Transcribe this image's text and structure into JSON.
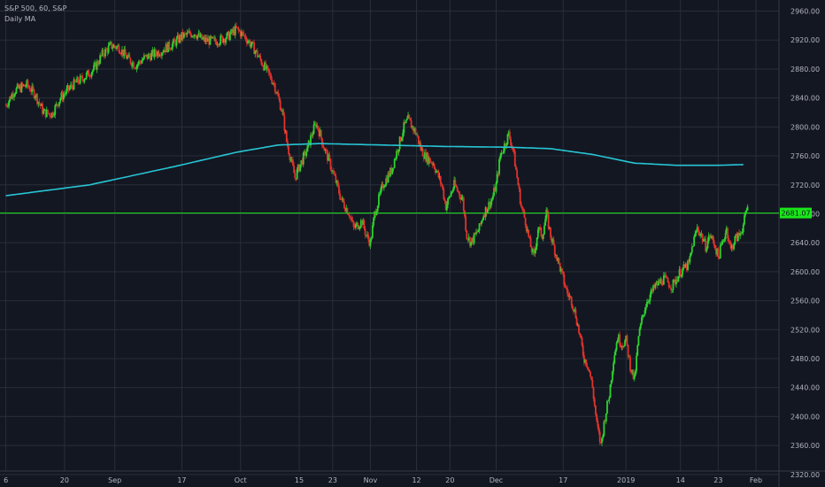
{
  "legend": {
    "symbol_line": "S&P 500, 60, S&P",
    "indicator_line": "Daily MA"
  },
  "colors": {
    "background": "#131722",
    "grid": "#2a2e39",
    "up_candle": "#2fd32f",
    "down_candle": "#e0332b",
    "ma_line": "#27c5d4",
    "price_line": "#19e619",
    "axis_text": "#b2b5be"
  },
  "chart_data": {
    "type": "candlestick",
    "title": "S&P 500, 60, S&P",
    "ylim": [
      2310,
      2990
    ],
    "y_ticks": [
      2320,
      2360,
      2400,
      2440,
      2480,
      2520,
      2560,
      2600,
      2640,
      2680,
      2720,
      2760,
      2800,
      2840,
      2880,
      2920,
      2960
    ],
    "y_tick_labels": [
      "2320.00",
      "2360.00",
      "2400.00",
      "2440.00",
      "2480.00",
      "2520.00",
      "2560.00",
      "2600.00",
      "2640.00",
      "2680.00",
      "2720.00",
      "2760.00",
      "2800.00",
      "2840.00",
      "2880.00",
      "2920.00",
      "2960.00"
    ],
    "x_ticks": [
      {
        "label": "6",
        "day": 0
      },
      {
        "label": "20",
        "day": 14
      },
      {
        "label": "Sep",
        "day": 26
      },
      {
        "label": "17",
        "day": 42
      },
      {
        "label": "Oct",
        "day": 56
      },
      {
        "label": "15",
        "day": 70
      },
      {
        "label": "23",
        "day": 78
      },
      {
        "label": "Nov",
        "day": 87
      },
      {
        "label": "12",
        "day": 98
      },
      {
        "label": "20",
        "day": 106
      },
      {
        "label": "Dec",
        "day": 117
      },
      {
        "label": "17",
        "day": 133
      },
      {
        "label": "2019",
        "day": 148
      },
      {
        "label": "14",
        "day": 161
      },
      {
        "label": "23",
        "day": 170
      },
      {
        "label": "Feb",
        "day": 179
      }
    ],
    "price_keypoints": [
      [
        0,
        2830
      ],
      [
        2,
        2850
      ],
      [
        5,
        2858
      ],
      [
        7,
        2845
      ],
      [
        9,
        2820
      ],
      [
        11,
        2818
      ],
      [
        13,
        2840
      ],
      [
        16,
        2858
      ],
      [
        19,
        2870
      ],
      [
        21,
        2880
      ],
      [
        23,
        2900
      ],
      [
        25,
        2912
      ],
      [
        27,
        2910
      ],
      [
        29,
        2895
      ],
      [
        31,
        2885
      ],
      [
        33,
        2895
      ],
      [
        35,
        2900
      ],
      [
        37,
        2905
      ],
      [
        40,
        2915
      ],
      [
        42,
        2925
      ],
      [
        45,
        2930
      ],
      [
        47,
        2920
      ],
      [
        50,
        2918
      ],
      [
        53,
        2925
      ],
      [
        55,
        2935
      ],
      [
        57,
        2925
      ],
      [
        59,
        2910
      ],
      [
        62,
        2880
      ],
      [
        64,
        2860
      ],
      [
        66,
        2820
      ],
      [
        67,
        2780
      ],
      [
        68,
        2755
      ],
      [
        69,
        2730
      ],
      [
        70,
        2745
      ],
      [
        72,
        2770
      ],
      [
        73,
        2790
      ],
      [
        74,
        2805
      ],
      [
        75,
        2790
      ],
      [
        76,
        2770
      ],
      [
        77,
        2755
      ],
      [
        79,
        2720
      ],
      [
        80,
        2700
      ],
      [
        82,
        2680
      ],
      [
        83,
        2660
      ],
      [
        85,
        2670
      ],
      [
        86,
        2650
      ],
      [
        87,
        2640
      ],
      [
        88,
        2680
      ],
      [
        90,
        2720
      ],
      [
        92,
        2740
      ],
      [
        93,
        2760
      ],
      [
        95,
        2800
      ],
      [
        96,
        2810
      ],
      [
        98,
        2790
      ],
      [
        99,
        2770
      ],
      [
        100,
        2760
      ],
      [
        102,
        2750
      ],
      [
        104,
        2720
      ],
      [
        105,
        2690
      ],
      [
        107,
        2720
      ],
      [
        109,
        2700
      ],
      [
        110,
        2650
      ],
      [
        111,
        2640
      ],
      [
        113,
        2660
      ],
      [
        114,
        2680
      ],
      [
        116,
        2700
      ],
      [
        117,
        2720
      ],
      [
        118,
        2760
      ],
      [
        120,
        2790
      ],
      [
        121,
        2770
      ],
      [
        122,
        2730
      ],
      [
        123,
        2690
      ],
      [
        124,
        2670
      ],
      [
        125,
        2640
      ],
      [
        126,
        2620
      ],
      [
        127,
        2660
      ],
      [
        128,
        2650
      ],
      [
        129,
        2680
      ],
      [
        130,
        2650
      ],
      [
        131,
        2630
      ],
      [
        132,
        2610
      ],
      [
        133,
        2590
      ],
      [
        134,
        2570
      ],
      [
        135,
        2560
      ],
      [
        136,
        2540
      ],
      [
        137,
        2510
      ],
      [
        138,
        2480
      ],
      [
        139,
        2470
      ],
      [
        140,
        2440
      ],
      [
        141,
        2390
      ],
      [
        142,
        2360
      ],
      [
        143,
        2400
      ],
      [
        144,
        2430
      ],
      [
        145,
        2480
      ],
      [
        146,
        2510
      ],
      [
        147,
        2500
      ],
      [
        148,
        2505
      ],
      [
        149,
        2470
      ],
      [
        150,
        2450
      ],
      [
        151,
        2510
      ],
      [
        152,
        2540
      ],
      [
        153,
        2560
      ],
      [
        155,
        2580
      ],
      [
        157,
        2590
      ],
      [
        159,
        2580
      ],
      [
        161,
        2600
      ],
      [
        163,
        2610
      ],
      [
        164,
        2640
      ],
      [
        165,
        2660
      ],
      [
        166,
        2650
      ],
      [
        167,
        2635
      ],
      [
        168,
        2650
      ],
      [
        169,
        2640
      ],
      [
        170,
        2620
      ],
      [
        171,
        2640
      ],
      [
        172,
        2660
      ],
      [
        173,
        2630
      ],
      [
        174,
        2645
      ],
      [
        175,
        2650
      ],
      [
        176,
        2665
      ],
      [
        177,
        2690
      ]
    ],
    "ma_keypoints": [
      [
        0,
        2705
      ],
      [
        20,
        2720
      ],
      [
        40,
        2745
      ],
      [
        55,
        2765
      ],
      [
        65,
        2775
      ],
      [
        75,
        2777
      ],
      [
        90,
        2775
      ],
      [
        105,
        2773
      ],
      [
        120,
        2772
      ],
      [
        130,
        2770
      ],
      [
        140,
        2762
      ],
      [
        150,
        2750
      ],
      [
        160,
        2747
      ],
      [
        170,
        2747
      ],
      [
        176,
        2748
      ]
    ],
    "current_price": 2681.07,
    "current_price_label": "2681.07"
  }
}
